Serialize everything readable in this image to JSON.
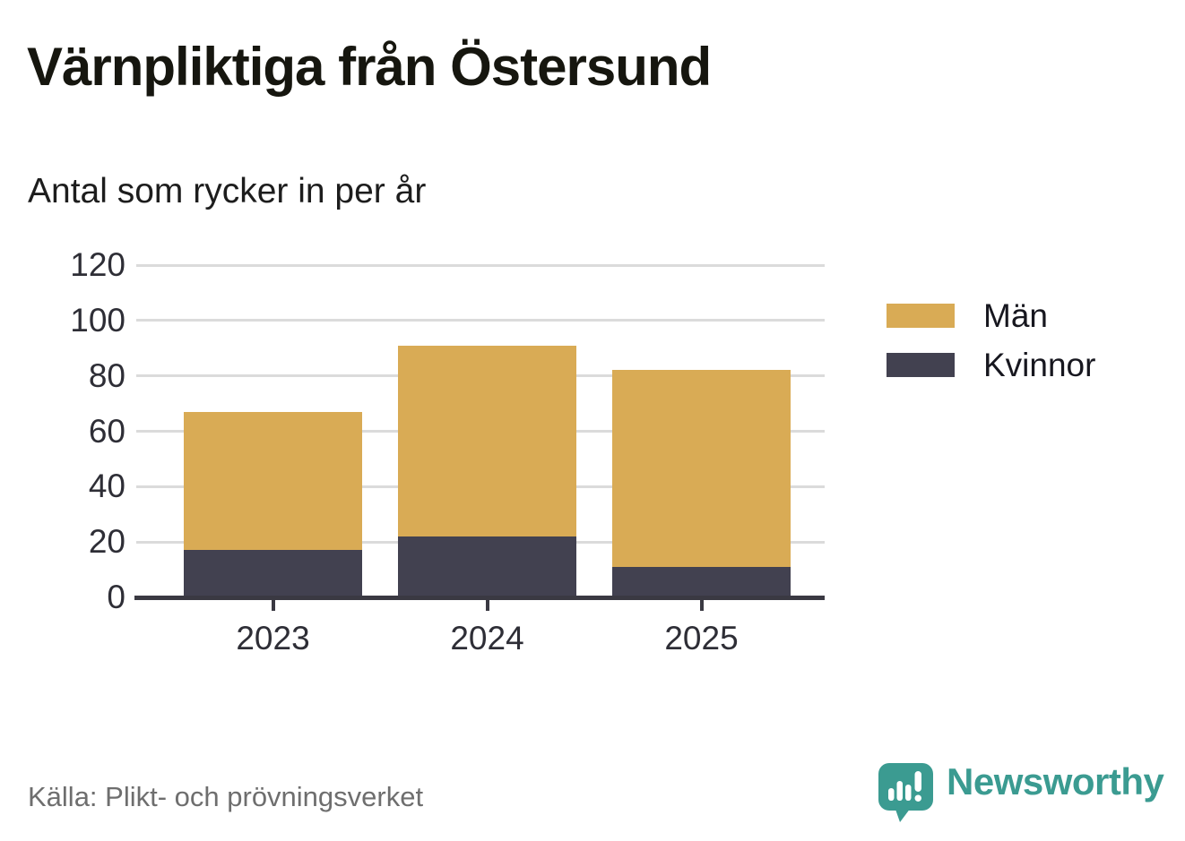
{
  "header": {
    "title": "Värnpliktiga från Östersund",
    "subtitle": "Antal som rycker in per år"
  },
  "chart_data": {
    "type": "bar",
    "stacked": true,
    "title": "Värnpliktiga från Östersund",
    "subtitle": "Antal som rycker in per år",
    "categories": [
      "2023",
      "2024",
      "2025"
    ],
    "series": [
      {
        "name": "Män",
        "color": "#D9AB55",
        "values": [
          50,
          69,
          71
        ]
      },
      {
        "name": "Kvinnor",
        "color": "#424150",
        "values": [
          17,
          22,
          11
        ]
      }
    ],
    "stack_totals": [
      67,
      91,
      82
    ],
    "xlabel": "",
    "ylabel": "",
    "ylim": [
      0,
      120
    ],
    "yticks": [
      0,
      20,
      40,
      60,
      80,
      100,
      120
    ],
    "grid": true,
    "legend_position": "right"
  },
  "footer": {
    "source": "Källa: Plikt- och prövningsverket",
    "brand": "Newsworthy"
  },
  "colors": {
    "axis": "#3A3942",
    "grid": "#DBDBDB",
    "title": "#16160F",
    "tick_label": "#2E2E36",
    "source_text": "#6E6E6E",
    "brand_teal": "#3B9B91",
    "background": "#FFFFFF"
  },
  "icons": {
    "logo": "newsworthy-speech-bubble-bar-chart-icon"
  }
}
